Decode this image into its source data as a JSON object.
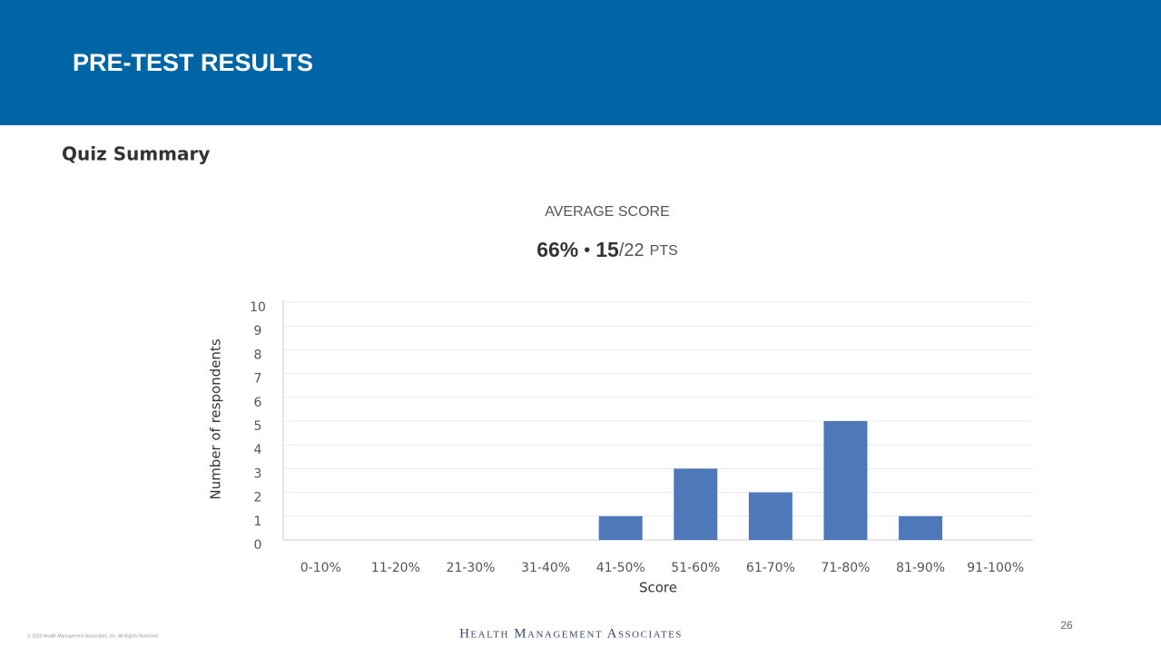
{
  "header": {
    "title": "PRE-TEST RESULTS"
  },
  "section_title": "Quiz Summary",
  "average": {
    "label": "AVERAGE SCORE",
    "percent": "66%",
    "separator": "•",
    "points": "15",
    "total": "/22",
    "unit": "PTS"
  },
  "chart_data": {
    "type": "bar",
    "categories": [
      "0-10%",
      "11-20%",
      "21-30%",
      "31-40%",
      "41-50%",
      "51-60%",
      "61-70%",
      "71-80%",
      "81-90%",
      "91-100%"
    ],
    "values": [
      0,
      0,
      0,
      0,
      1,
      3,
      2,
      5,
      1,
      0
    ],
    "color": "#4e79b9",
    "xlabel": "Score",
    "ylabel": "Number of respondents",
    "ylim": [
      0,
      10
    ],
    "yticks": [
      0,
      1,
      2,
      3,
      4,
      5,
      6,
      7,
      8,
      9,
      10
    ],
    "grid": true
  },
  "footer": {
    "copyright": "© 2023 Health Management Associates, Inc. All Rights Reserved.",
    "brand": "Health Management Associates",
    "page": "26"
  }
}
